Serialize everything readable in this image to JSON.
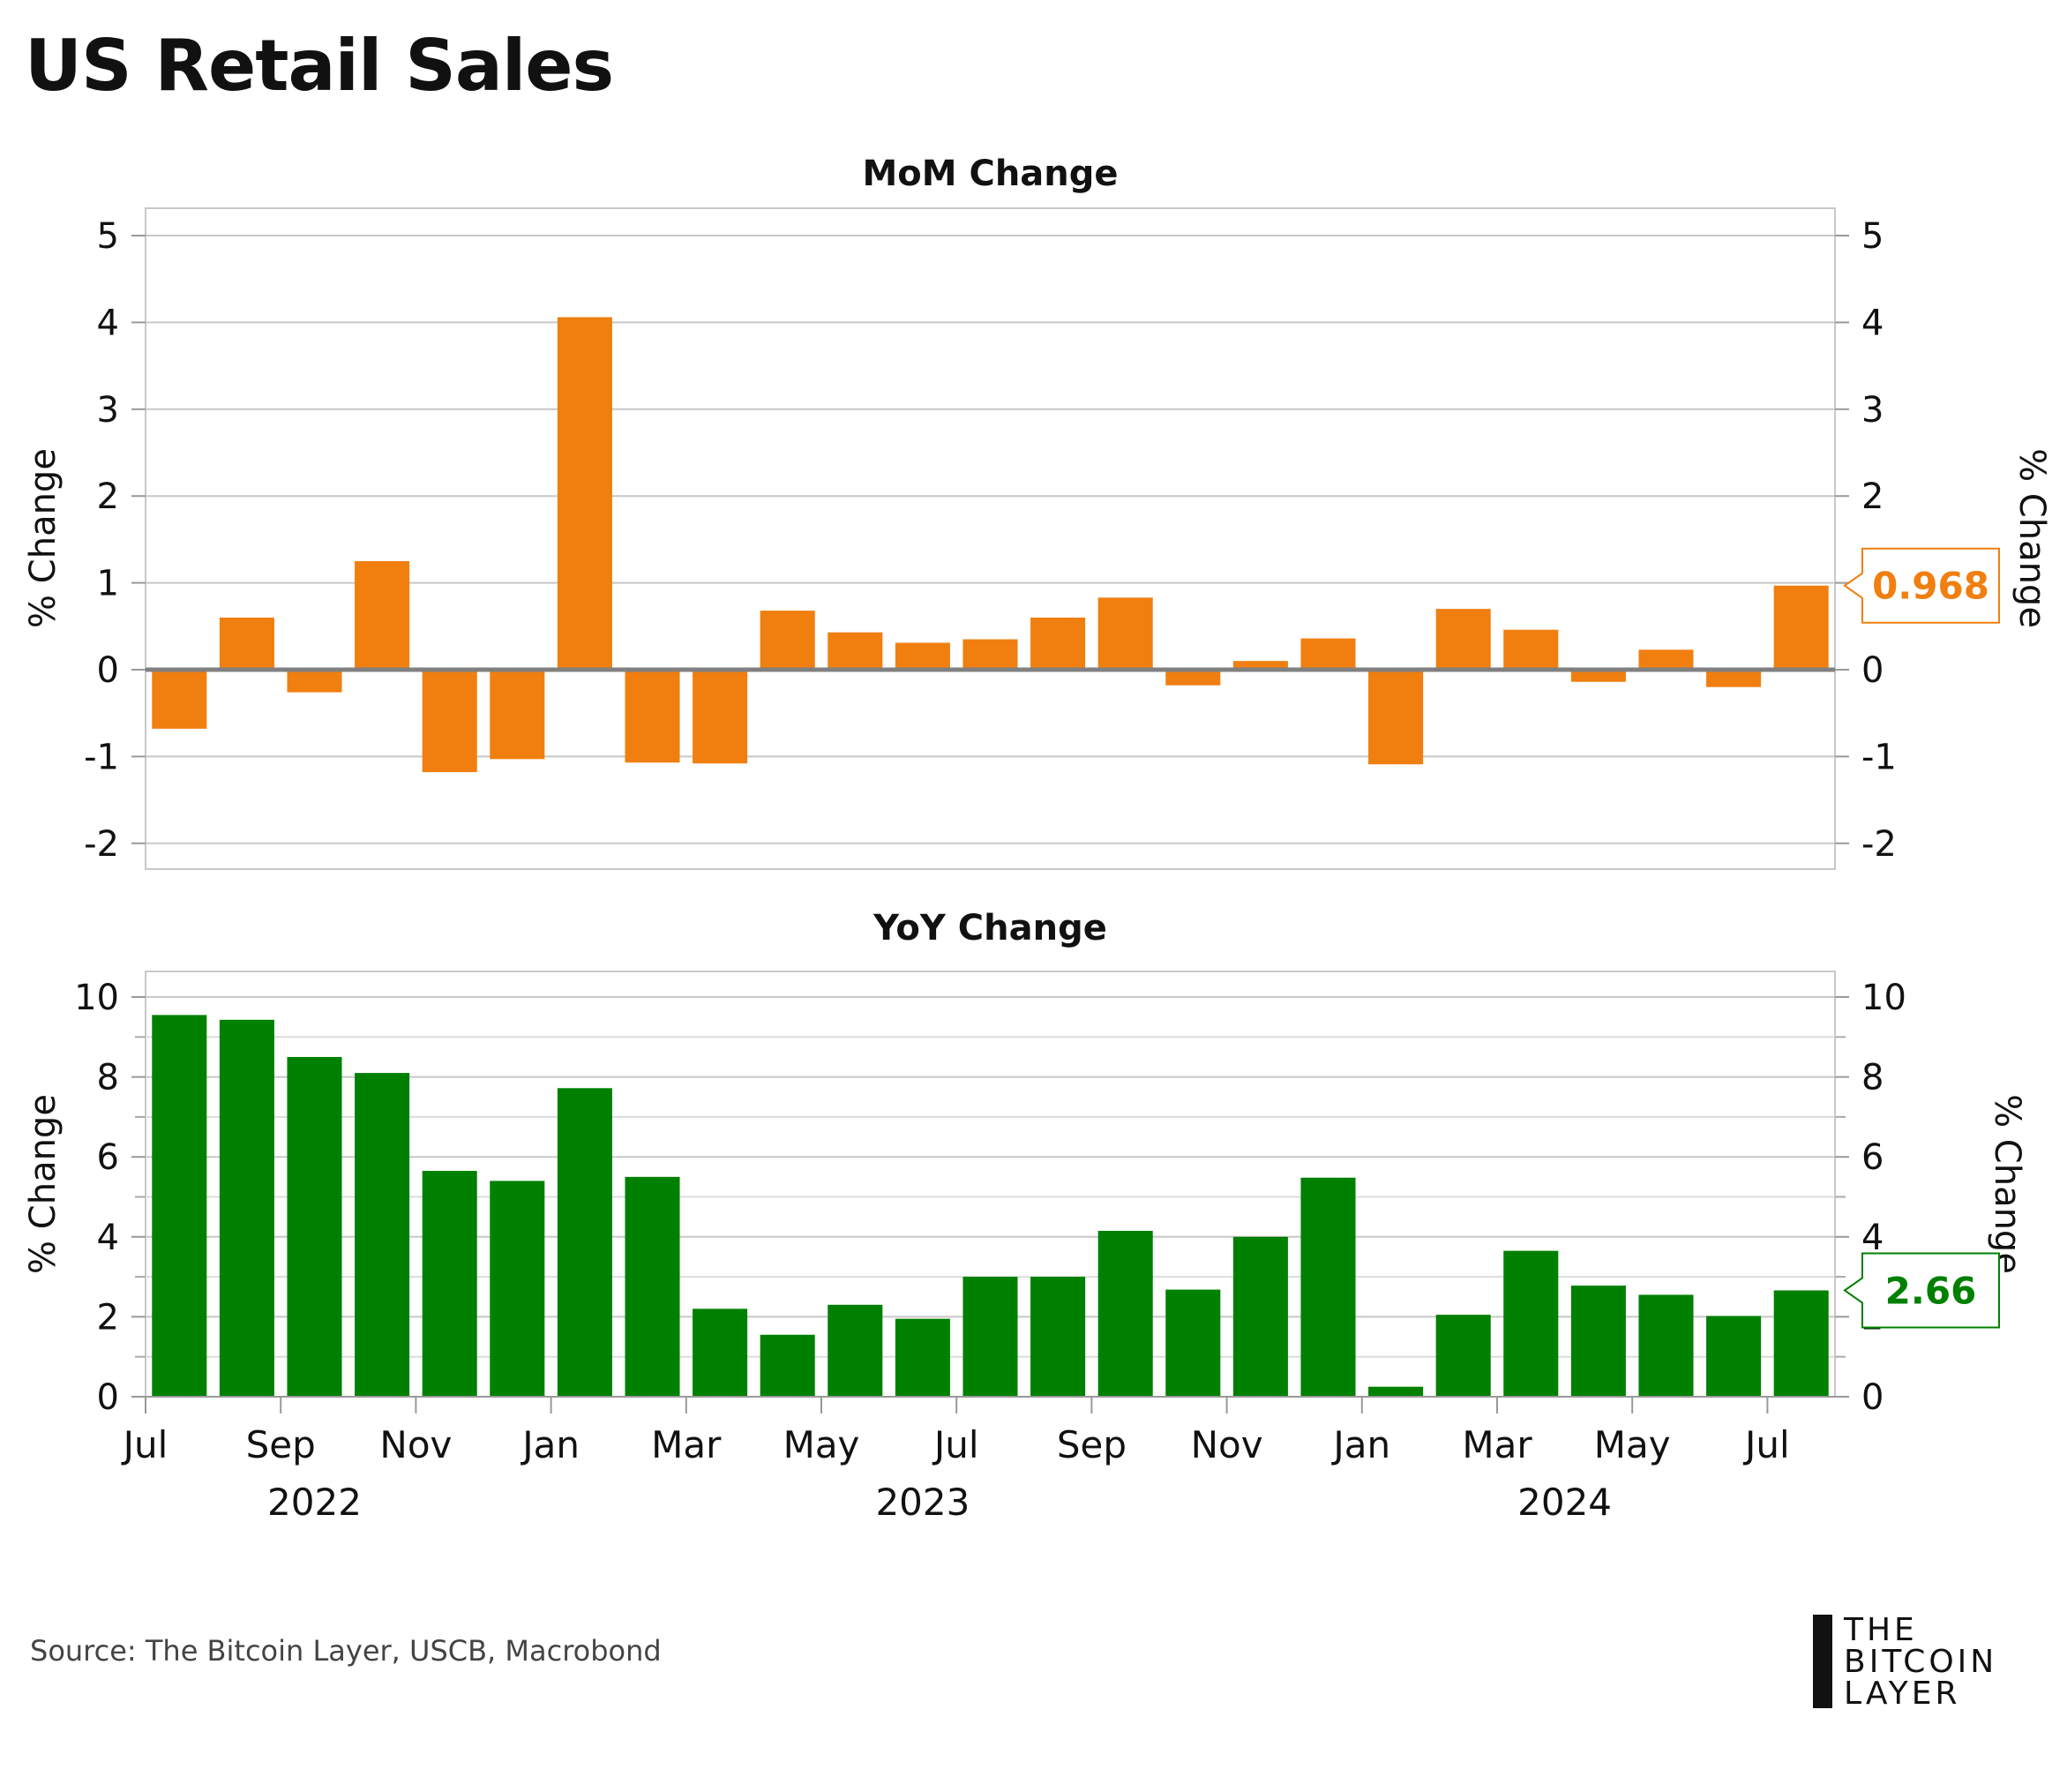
{
  "title": "US Retail Sales",
  "source": "Source: The Bitcoin Layer, USCB, Macrobond",
  "logo": {
    "lines": [
      "THE",
      "BITCOIN",
      "LAYER"
    ]
  },
  "colors": {
    "mom": "#f07f0f",
    "yoy": "#008000",
    "grid": "#c8c8c8",
    "zero": "#808080"
  },
  "x_axis": {
    "month_labels": [
      "Jul",
      "Sep",
      "Nov",
      "Jan",
      "Mar",
      "May",
      "Jul",
      "Sep",
      "Nov",
      "Jan",
      "Mar",
      "May",
      "Jul"
    ],
    "year_labels": [
      "2022",
      "2023",
      "2024"
    ]
  },
  "chart_data": [
    {
      "type": "bar",
      "title": "MoM Change",
      "ylabel": "% Change",
      "ylim": [
        -2.3,
        5.3
      ],
      "yticks": [
        -2,
        -1,
        0,
        1,
        2,
        3,
        4,
        5
      ],
      "grid": true,
      "categories": [
        "2022-07",
        "2022-08",
        "2022-09",
        "2022-10",
        "2022-11",
        "2022-12",
        "2023-01",
        "2023-02",
        "2023-03",
        "2023-04",
        "2023-05",
        "2023-06",
        "2023-07",
        "2023-08",
        "2023-09",
        "2023-10",
        "2023-11",
        "2023-12",
        "2024-01",
        "2024-02",
        "2024-03",
        "2024-04",
        "2024-05",
        "2024-06",
        "2024-07"
      ],
      "values": [
        -0.68,
        0.6,
        -0.26,
        1.25,
        -1.18,
        -1.03,
        4.06,
        -1.07,
        -1.08,
        0.68,
        0.43,
        0.31,
        0.35,
        0.6,
        0.83,
        -0.18,
        0.1,
        0.36,
        -1.09,
        0.7,
        0.46,
        -0.14,
        0.23,
        -0.2,
        0.968
      ],
      "last_value_label": "0.968"
    },
    {
      "type": "bar",
      "title": "YoY Change",
      "ylabel": "% Change",
      "ylim": [
        0,
        10.6
      ],
      "yticks": [
        0,
        2,
        4,
        6,
        8,
        10
      ],
      "grid": true,
      "categories": [
        "2022-07",
        "2022-08",
        "2022-09",
        "2022-10",
        "2022-11",
        "2022-12",
        "2023-01",
        "2023-02",
        "2023-03",
        "2023-04",
        "2023-05",
        "2023-06",
        "2023-07",
        "2023-08",
        "2023-09",
        "2023-10",
        "2023-11",
        "2023-12",
        "2024-01",
        "2024-02",
        "2024-03",
        "2024-04",
        "2024-05",
        "2024-06",
        "2024-07"
      ],
      "values": [
        9.55,
        9.43,
        8.5,
        8.1,
        5.65,
        5.4,
        7.72,
        5.5,
        2.2,
        1.55,
        2.3,
        1.95,
        3.0,
        3.0,
        4.15,
        2.68,
        4.0,
        5.48,
        0.25,
        2.05,
        3.65,
        2.78,
        2.55,
        2.02,
        2.66
      ],
      "last_value_label": "2.66"
    }
  ]
}
